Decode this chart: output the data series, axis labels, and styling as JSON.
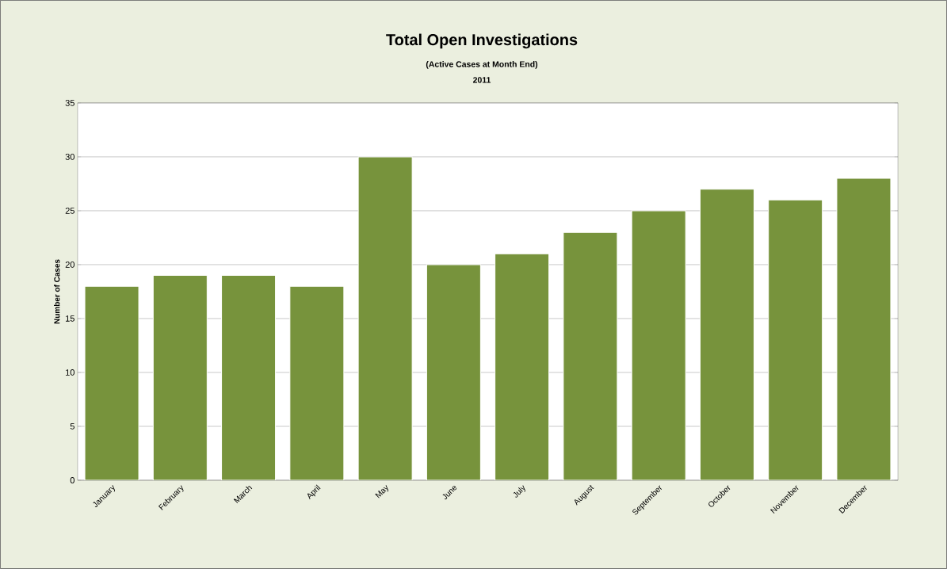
{
  "chart_data": {
    "type": "bar",
    "title": "Total Open Investigations",
    "subtitle": "(Active Cases at Month End)",
    "annotations": [
      "2011"
    ],
    "ylabel": "Number of Cases",
    "categories": [
      "January",
      "February",
      "March",
      "April",
      "May",
      "June",
      "July",
      "August",
      "September",
      "October",
      "November",
      "December"
    ],
    "values": [
      18,
      19,
      19,
      18,
      30,
      20,
      21,
      23,
      25,
      27,
      26,
      28
    ],
    "color": "#77933c",
    "ylim": [
      0,
      35
    ],
    "yticks": [
      0,
      5,
      10,
      15,
      20,
      25,
      30,
      35
    ],
    "grid": "y"
  }
}
